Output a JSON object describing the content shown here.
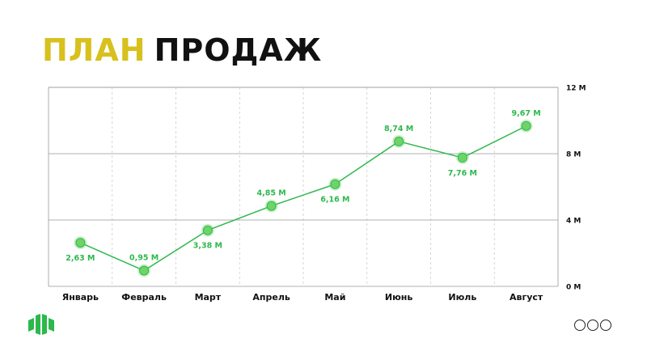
{
  "title": {
    "word1": "ПЛАН",
    "word2": "ПРОДАЖ"
  },
  "colors": {
    "accent_yellow": "#d8c01e",
    "title_dark": "#111111",
    "series_green": "#2db84c",
    "marker_fill": "#6fd36a",
    "grid": "#999999"
  },
  "chart_data": {
    "type": "line",
    "categories": [
      "Январь",
      "Февраль",
      "Март",
      "Апрель",
      "Май",
      "Июнь",
      "Июль",
      "Август"
    ],
    "series": [
      {
        "values": [
          2.63,
          0.95,
          3.38,
          4.85,
          6.16,
          8.74,
          7.76,
          9.67
        ],
        "labels": [
          "2,63 М",
          "0,95 М",
          "3,38 М",
          "4,85 М",
          "6,16 М",
          "8,74 М",
          "7,76 М",
          "9,67 М"
        ],
        "label_positions": [
          "below",
          "above",
          "below",
          "above",
          "below",
          "above",
          "below",
          "above"
        ]
      }
    ],
    "y_ticks": [
      {
        "value": 0,
        "label": "0 М"
      },
      {
        "value": 4,
        "label": "4 М"
      },
      {
        "value": 8,
        "label": "8 М"
      },
      {
        "value": 12,
        "label": "12 М"
      }
    ],
    "ylim": [
      0,
      12
    ],
    "y_axis_position": "right",
    "grid": true,
    "title": "",
    "xlabel": "",
    "ylabel": ""
  },
  "footer": {
    "logo_icon": "company-logo-icon",
    "nav_dots_count": 3
  }
}
